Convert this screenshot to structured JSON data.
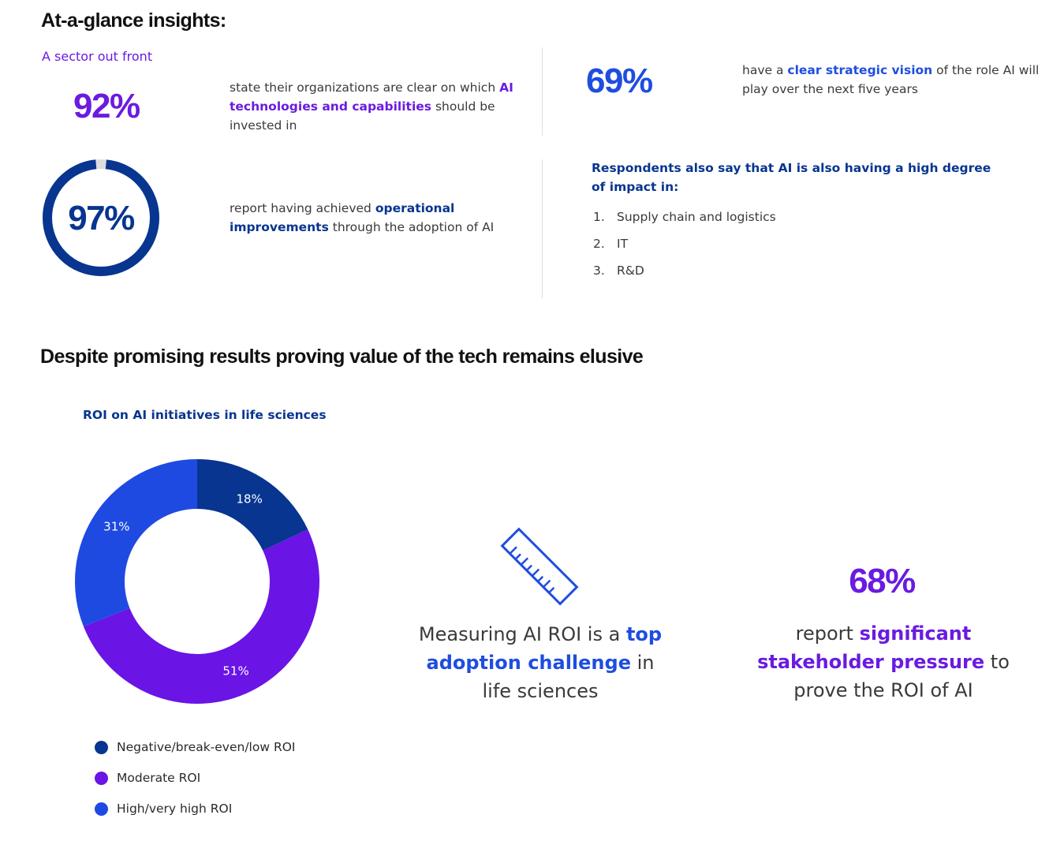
{
  "header": {
    "title": "At-a-glance insights:"
  },
  "insights": {
    "sector_label": "A sector out front",
    "stat1": {
      "value": "92%",
      "text_before": "state their organizations are clear on which ",
      "highlight": "AI technologies and capabilities",
      "text_after": " should be invested in"
    },
    "stat2": {
      "value": "69%",
      "text_before": "have a ",
      "highlight": "clear strategic vision",
      "text_after": " of the role AI will play over the next five years"
    },
    "stat3": {
      "value": "97%",
      "ring_fraction": 0.97,
      "text_before": "report having achieved ",
      "highlight": "operational improvements",
      "text_after": " through the adoption of AI"
    },
    "impact": {
      "heading": "Respondents also say that AI is also having a high degree of impact in:",
      "items": [
        {
          "num": "1.",
          "label": "Supply chain and logistics"
        },
        {
          "num": "2.",
          "label": "IT"
        },
        {
          "num": "3.",
          "label": "R&D"
        }
      ]
    }
  },
  "section2": {
    "title": "Despite promising results proving value of the tech remains elusive"
  },
  "chart_data": {
    "type": "pie",
    "title": "ROI on AI initiatives in life sciences",
    "categories": [
      "Negative/break-even/low ROI",
      "Moderate ROI",
      "High/very high ROI"
    ],
    "values": [
      18,
      51,
      31
    ],
    "labels": [
      "18%",
      "51%",
      "31%"
    ],
    "colors": [
      "#073590",
      "#6a14e6",
      "#1f4ae2"
    ],
    "donut": true,
    "legend_position": "bottom"
  },
  "roi_challenge": {
    "icon": "ruler-icon",
    "text_before": "Measuring AI ROI is a ",
    "highlight": "top adoption challenge",
    "text_after": " in life sciences"
  },
  "stat4": {
    "value": "68%",
    "text_before": "report ",
    "highlight": "significant stakeholder pressure",
    "text_after": " to prove the ROI of AI"
  },
  "colors": {
    "purple": "#6a1be0",
    "navy": "#073590",
    "blue": "#1f4de0"
  }
}
